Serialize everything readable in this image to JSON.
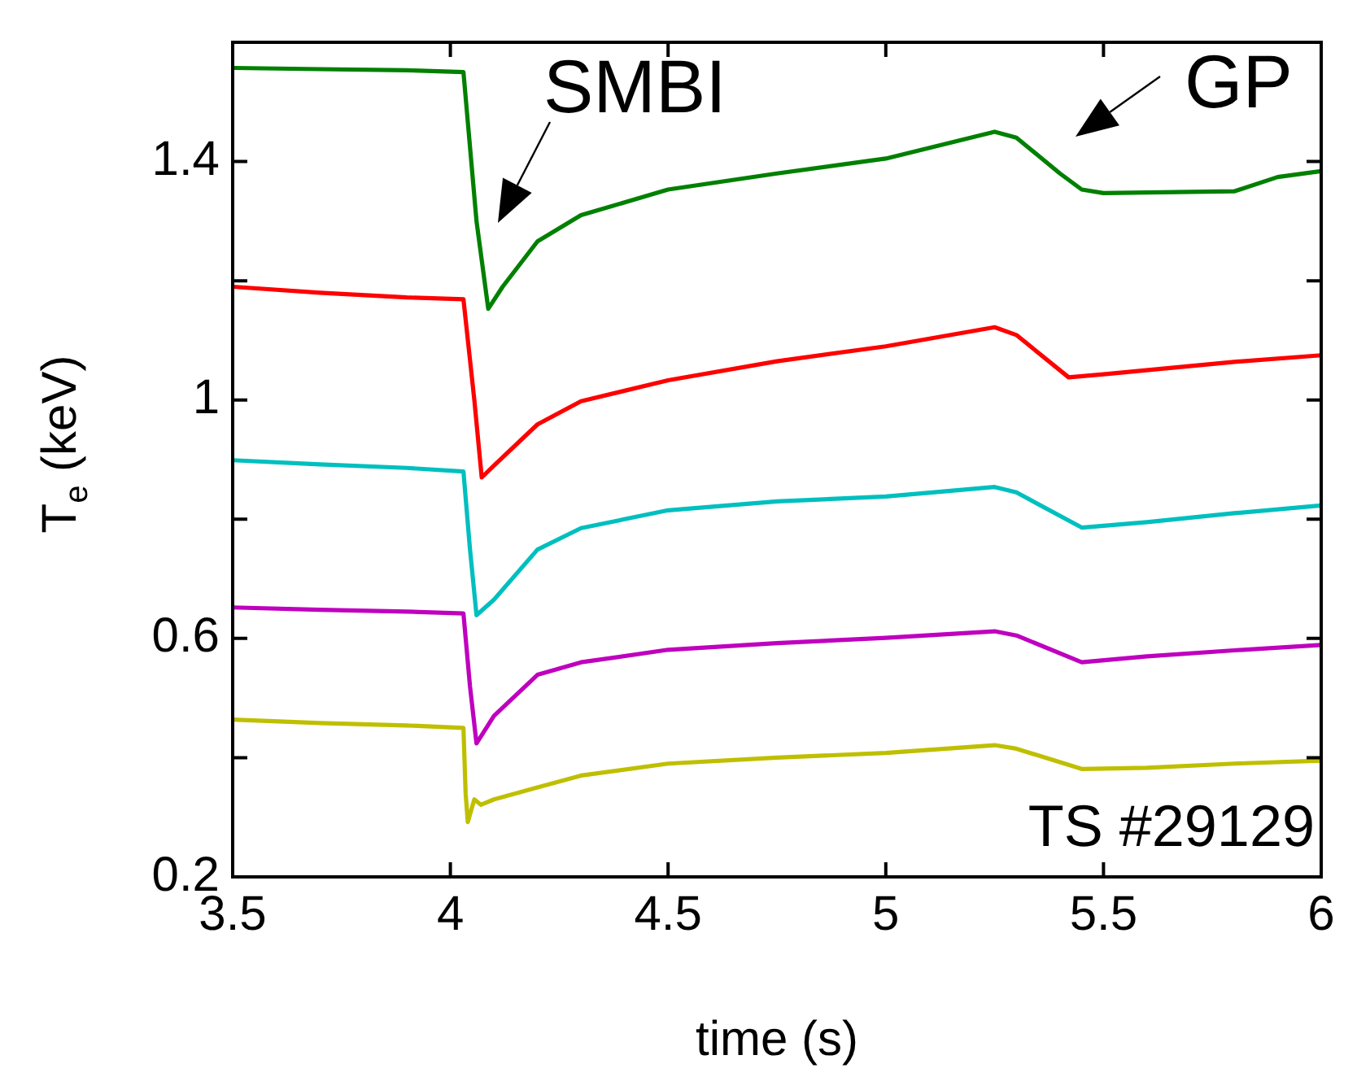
{
  "chart_data": {
    "type": "line",
    "xlabel": "time (s)",
    "ylabel": "T$_{e}$ (keV)",
    "xlim": [
      3.5,
      6
    ],
    "xticks": [
      3.5,
      4,
      4.5,
      5,
      5.5,
      6
    ],
    "ylim": [
      0.2,
      1.6
    ],
    "yticks": [
      0.2,
      {
        "value": 0.4,
        "label": null
      },
      0.6,
      {
        "value": 0.8,
        "label": null
      },
      1,
      {
        "value": 1.2,
        "label": null
      },
      1.4
    ],
    "grid": false,
    "legend": false,
    "marker": "none",
    "line_style": "solid",
    "series": [
      {
        "color": "#008000",
        "x": [
          3.5,
          3.7,
          3.9,
          4.03,
          4.06,
          4.087,
          4.12,
          4.2,
          4.3,
          4.5,
          4.75,
          5.0,
          5.25,
          5.3,
          5.4,
          5.45,
          5.5,
          5.8,
          5.9,
          6.0
        ],
        "values": [
          1.557,
          1.555,
          1.553,
          1.55,
          1.3,
          1.153,
          1.19,
          1.266,
          1.31,
          1.353,
          1.38,
          1.405,
          1.45,
          1.44,
          1.38,
          1.353,
          1.347,
          1.35,
          1.374,
          1.384
        ]
      },
      {
        "color": "#ff0000",
        "x": [
          3.5,
          3.7,
          3.9,
          4.03,
          4.055,
          4.072,
          4.1,
          4.2,
          4.3,
          4.5,
          4.75,
          5.0,
          5.25,
          5.3,
          5.42,
          5.5,
          5.8,
          6.0
        ],
        "values": [
          1.19,
          1.18,
          1.172,
          1.169,
          1.0,
          0.87,
          0.89,
          0.959,
          0.998,
          1.033,
          1.065,
          1.09,
          1.122,
          1.109,
          1.038,
          1.043,
          1.064,
          1.075
        ]
      },
      {
        "color": "#00bfbf",
        "x": [
          3.5,
          3.7,
          3.9,
          4.03,
          4.045,
          4.06,
          4.1,
          4.2,
          4.3,
          4.5,
          4.75,
          5.0,
          5.25,
          5.3,
          5.45,
          5.6,
          5.8,
          6.0
        ],
        "values": [
          0.899,
          0.892,
          0.886,
          0.88,
          0.75,
          0.639,
          0.665,
          0.749,
          0.785,
          0.815,
          0.83,
          0.838,
          0.854,
          0.845,
          0.786,
          0.795,
          0.81,
          0.823
        ]
      },
      {
        "color": "#bf00bf",
        "x": [
          3.5,
          3.7,
          3.9,
          4.03,
          4.045,
          4.06,
          4.1,
          4.2,
          4.3,
          4.5,
          4.75,
          5.0,
          5.25,
          5.3,
          5.45,
          5.6,
          5.8,
          6.0
        ],
        "values": [
          0.652,
          0.648,
          0.645,
          0.642,
          0.52,
          0.424,
          0.47,
          0.539,
          0.56,
          0.581,
          0.592,
          0.601,
          0.612,
          0.605,
          0.56,
          0.57,
          0.58,
          0.589
        ]
      },
      {
        "color": "#bfbf00",
        "x": [
          3.5,
          3.7,
          3.9,
          4.03,
          4.035,
          4.04,
          4.055,
          4.07,
          4.1,
          4.2,
          4.3,
          4.5,
          4.75,
          5.0,
          5.25,
          5.3,
          5.45,
          5.6,
          5.8,
          6.0
        ],
        "values": [
          0.464,
          0.458,
          0.454,
          0.45,
          0.34,
          0.292,
          0.33,
          0.321,
          0.33,
          0.35,
          0.37,
          0.39,
          0.4,
          0.408,
          0.421,
          0.415,
          0.381,
          0.383,
          0.39,
          0.395
        ]
      }
    ],
    "annotations": [
      "SMBI",
      "GP",
      "TS #29129"
    ]
  }
}
